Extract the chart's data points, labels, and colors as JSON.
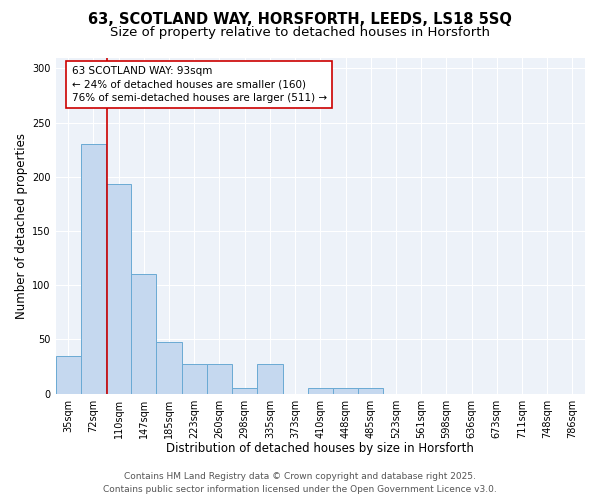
{
  "title_line1": "63, SCOTLAND WAY, HORSFORTH, LEEDS, LS18 5SQ",
  "title_line2": "Size of property relative to detached houses in Horsforth",
  "xlabel": "Distribution of detached houses by size in Horsforth",
  "ylabel": "Number of detached properties",
  "categories": [
    "35sqm",
    "72sqm",
    "110sqm",
    "147sqm",
    "185sqm",
    "223sqm",
    "260sqm",
    "298sqm",
    "335sqm",
    "373sqm",
    "410sqm",
    "448sqm",
    "485sqm",
    "523sqm",
    "561sqm",
    "598sqm",
    "636sqm",
    "673sqm",
    "711sqm",
    "748sqm",
    "786sqm"
  ],
  "values": [
    35,
    230,
    193,
    110,
    48,
    27,
    27,
    5,
    27,
    0,
    5,
    5,
    5,
    0,
    0,
    0,
    0,
    0,
    0,
    0,
    0
  ],
  "bar_color": "#c5d8ef",
  "bar_edge_color": "#6aaad4",
  "property_line_color": "#cc0000",
  "annotation_text": "63 SCOTLAND WAY: 93sqm\n← 24% of detached houses are smaller (160)\n76% of semi-detached houses are larger (511) →",
  "ylim": [
    0,
    310
  ],
  "yticks": [
    0,
    50,
    100,
    150,
    200,
    250,
    300
  ],
  "background_color": "#edf2f9",
  "footer_line1": "Contains HM Land Registry data © Crown copyright and database right 2025.",
  "footer_line2": "Contains public sector information licensed under the Open Government Licence v3.0.",
  "title_fontsize": 10.5,
  "subtitle_fontsize": 9.5,
  "xlabel_fontsize": 8.5,
  "ylabel_fontsize": 8.5,
  "tick_fontsize": 7,
  "annotation_fontsize": 7.5,
  "footer_fontsize": 6.5
}
